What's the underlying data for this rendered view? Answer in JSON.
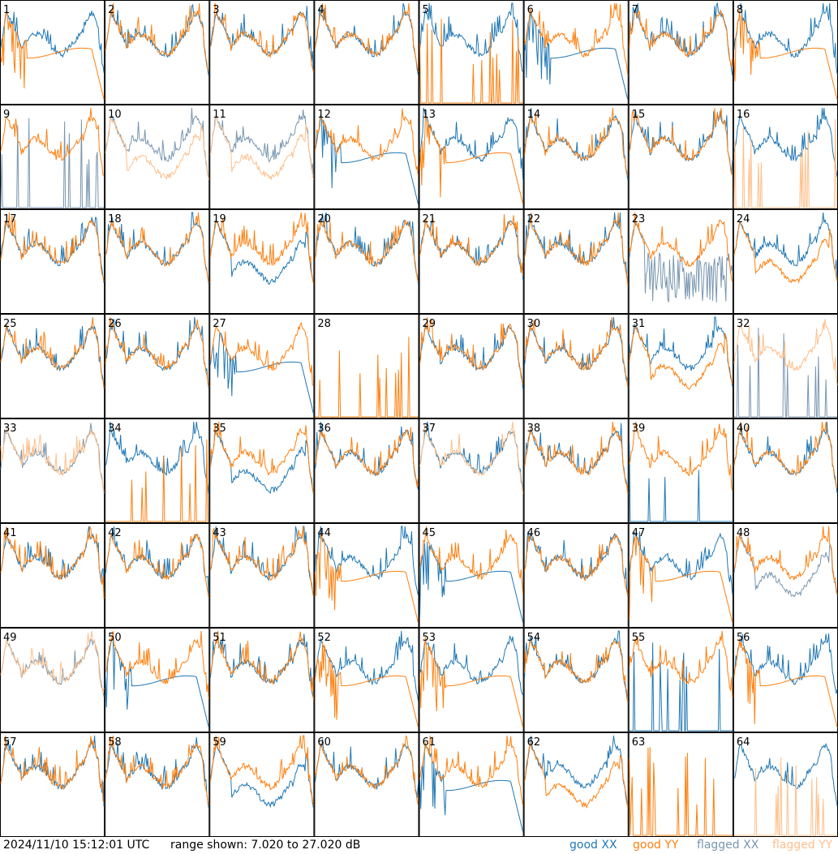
{
  "footer": {
    "timestamp": "2024/11/10 15:12:01 UTC",
    "range": "range shown: 7.020 to 27.020 dB"
  },
  "legend": {
    "good_xx": "good XX",
    "good_yy": "good YY",
    "flagged_xx": "flagged XX",
    "flagged_yy": "flagged YY"
  },
  "colors": {
    "good_xx": "#1f77b4",
    "good_yy": "#ff7f0e",
    "flagged_xx": "#7896b0",
    "flagged_yy": "#ffbf8a"
  },
  "chart_data": {
    "type": "line",
    "grid_layout": "8x8 small multiples",
    "ylim": [
      7.02,
      27.02
    ],
    "y_unit": "dB",
    "panels": [
      {
        "label": "1",
        "xx": "good",
        "yy": "good",
        "xx_shape": "normal",
        "yy_shape": "rolloff"
      },
      {
        "label": "2",
        "xx": "good",
        "yy": "good",
        "xx_shape": "normal",
        "yy_shape": "normal"
      },
      {
        "label": "3",
        "xx": "good",
        "yy": "good",
        "xx_shape": "normal",
        "yy_shape": "normal"
      },
      {
        "label": "4",
        "xx": "good",
        "yy": "good",
        "xx_shape": "normal",
        "yy_shape": "normal"
      },
      {
        "label": "5",
        "xx": "good",
        "yy": "good",
        "xx_shape": "normal",
        "yy_shape": "dead"
      },
      {
        "label": "6",
        "xx": "good",
        "yy": "good",
        "xx_shape": "rolloff",
        "yy_shape": "normal"
      },
      {
        "label": "7",
        "xx": "good",
        "yy": "good",
        "xx_shape": "normal",
        "yy_shape": "normal"
      },
      {
        "label": "8",
        "xx": "good",
        "yy": "good",
        "xx_shape": "normal",
        "yy_shape": "rolloff"
      },
      {
        "label": "9",
        "xx": "flagged",
        "yy": "good",
        "xx_shape": "dead",
        "yy_shape": "normal"
      },
      {
        "label": "10",
        "xx": "flagged",
        "yy": "flagged",
        "xx_shape": "normal",
        "yy_shape": "low"
      },
      {
        "label": "11",
        "xx": "flagged",
        "yy": "flagged",
        "xx_shape": "normal",
        "yy_shape": "low"
      },
      {
        "label": "12",
        "xx": "good",
        "yy": "good",
        "xx_shape": "rolloff",
        "yy_shape": "normal"
      },
      {
        "label": "13",
        "xx": "good",
        "yy": "good",
        "xx_shape": "normal",
        "yy_shape": "rolloff"
      },
      {
        "label": "14",
        "xx": "good",
        "yy": "good",
        "xx_shape": "normal",
        "yy_shape": "normal"
      },
      {
        "label": "15",
        "xx": "good",
        "yy": "good",
        "xx_shape": "normal",
        "yy_shape": "normal"
      },
      {
        "label": "16",
        "xx": "good",
        "yy": "flagged",
        "xx_shape": "normal",
        "yy_shape": "dead"
      },
      {
        "label": "17",
        "xx": "good",
        "yy": "good",
        "xx_shape": "normal",
        "yy_shape": "normal"
      },
      {
        "label": "18",
        "xx": "good",
        "yy": "good",
        "xx_shape": "normal",
        "yy_shape": "normal"
      },
      {
        "label": "19",
        "xx": "good",
        "yy": "good",
        "xx_shape": "low",
        "yy_shape": "normal"
      },
      {
        "label": "20",
        "xx": "good",
        "yy": "good",
        "xx_shape": "normal",
        "yy_shape": "normal"
      },
      {
        "label": "21",
        "xx": "good",
        "yy": "good",
        "xx_shape": "normal",
        "yy_shape": "normal"
      },
      {
        "label": "22",
        "xx": "good",
        "yy": "good",
        "xx_shape": "normal",
        "yy_shape": "normal"
      },
      {
        "label": "23",
        "xx": "flagged",
        "yy": "good",
        "xx_shape": "noisy",
        "yy_shape": "normal"
      },
      {
        "label": "24",
        "xx": "good",
        "yy": "good",
        "xx_shape": "normal",
        "yy_shape": "low"
      },
      {
        "label": "25",
        "xx": "good",
        "yy": "good",
        "xx_shape": "normal",
        "yy_shape": "normal"
      },
      {
        "label": "26",
        "xx": "good",
        "yy": "good",
        "xx_shape": "normal",
        "yy_shape": "normal"
      },
      {
        "label": "27",
        "xx": "good",
        "yy": "good",
        "xx_shape": "rolloff",
        "yy_shape": "normal"
      },
      {
        "label": "28",
        "xx": "good",
        "yy": "good",
        "xx_shape": "none",
        "yy_shape": "dead"
      },
      {
        "label": "29",
        "xx": "good",
        "yy": "good",
        "xx_shape": "normal",
        "yy_shape": "normal"
      },
      {
        "label": "30",
        "xx": "good",
        "yy": "good",
        "xx_shape": "normal",
        "yy_shape": "normal"
      },
      {
        "label": "31",
        "xx": "good",
        "yy": "good",
        "xx_shape": "normal",
        "yy_shape": "low"
      },
      {
        "label": "32",
        "xx": "flagged",
        "yy": "flagged",
        "xx_shape": "dead",
        "yy_shape": "normal"
      },
      {
        "label": "33",
        "xx": "flagged",
        "yy": "flagged",
        "xx_shape": "normal",
        "yy_shape": "normal"
      },
      {
        "label": "34",
        "xx": "good",
        "yy": "good",
        "xx_shape": "normal",
        "yy_shape": "dead"
      },
      {
        "label": "35",
        "xx": "good",
        "yy": "good",
        "xx_shape": "low",
        "yy_shape": "normal"
      },
      {
        "label": "36",
        "xx": "good",
        "yy": "good",
        "xx_shape": "normal",
        "yy_shape": "normal"
      },
      {
        "label": "37",
        "xx": "good",
        "yy": "flagged",
        "xx_shape": "normal",
        "yy_shape": "normal"
      },
      {
        "label": "38",
        "xx": "good",
        "yy": "good",
        "xx_shape": "normal",
        "yy_shape": "normal"
      },
      {
        "label": "39",
        "xx": "good",
        "yy": "good",
        "xx_shape": "dead",
        "yy_shape": "normal"
      },
      {
        "label": "40",
        "xx": "good",
        "yy": "good",
        "xx_shape": "normal",
        "yy_shape": "normal"
      },
      {
        "label": "41",
        "xx": "good",
        "yy": "good",
        "xx_shape": "normal",
        "yy_shape": "normal"
      },
      {
        "label": "42",
        "xx": "good",
        "yy": "good",
        "xx_shape": "normal",
        "yy_shape": "normal"
      },
      {
        "label": "43",
        "xx": "good",
        "yy": "good",
        "xx_shape": "normal",
        "yy_shape": "normal"
      },
      {
        "label": "44",
        "xx": "good",
        "yy": "good",
        "xx_shape": "normal",
        "yy_shape": "rolloff"
      },
      {
        "label": "45",
        "xx": "good",
        "yy": "good",
        "xx_shape": "rolloff",
        "yy_shape": "normal"
      },
      {
        "label": "46",
        "xx": "good",
        "yy": "good",
        "xx_shape": "normal",
        "yy_shape": "normal"
      },
      {
        "label": "47",
        "xx": "good",
        "yy": "good",
        "xx_shape": "normal",
        "yy_shape": "rolloff"
      },
      {
        "label": "48",
        "xx": "flagged",
        "yy": "good",
        "xx_shape": "low",
        "yy_shape": "normal"
      },
      {
        "label": "49",
        "xx": "flagged",
        "yy": "flagged",
        "xx_shape": "normal",
        "yy_shape": "normal"
      },
      {
        "label": "50",
        "xx": "good",
        "yy": "good",
        "xx_shape": "rolloff",
        "yy_shape": "normal"
      },
      {
        "label": "51",
        "xx": "good",
        "yy": "good",
        "xx_shape": "normal",
        "yy_shape": "normal"
      },
      {
        "label": "52",
        "xx": "good",
        "yy": "good",
        "xx_shape": "normal",
        "yy_shape": "rolloff"
      },
      {
        "label": "53",
        "xx": "good",
        "yy": "good",
        "xx_shape": "normal",
        "yy_shape": "rolloff"
      },
      {
        "label": "54",
        "xx": "good",
        "yy": "good",
        "xx_shape": "normal",
        "yy_shape": "normal"
      },
      {
        "label": "55",
        "xx": "good",
        "yy": "good",
        "xx_shape": "dead",
        "yy_shape": "normal"
      },
      {
        "label": "56",
        "xx": "good",
        "yy": "good",
        "xx_shape": "normal",
        "yy_shape": "rolloff"
      },
      {
        "label": "57",
        "xx": "good",
        "yy": "good",
        "xx_shape": "normal",
        "yy_shape": "normal"
      },
      {
        "label": "58",
        "xx": "good",
        "yy": "good",
        "xx_shape": "normal",
        "yy_shape": "normal"
      },
      {
        "label": "59",
        "xx": "good",
        "yy": "good",
        "xx_shape": "low",
        "yy_shape": "normal"
      },
      {
        "label": "60",
        "xx": "good",
        "yy": "good",
        "xx_shape": "normal",
        "yy_shape": "normal"
      },
      {
        "label": "61",
        "xx": "good",
        "yy": "good",
        "xx_shape": "rolloff",
        "yy_shape": "normal"
      },
      {
        "label": "62",
        "xx": "good",
        "yy": "good",
        "xx_shape": "normal",
        "yy_shape": "low"
      },
      {
        "label": "63",
        "xx": "good",
        "yy": "good",
        "xx_shape": "none",
        "yy_shape": "dead"
      },
      {
        "label": "64",
        "xx": "good",
        "yy": "flagged",
        "xx_shape": "normal",
        "yy_shape": "dead"
      }
    ]
  }
}
